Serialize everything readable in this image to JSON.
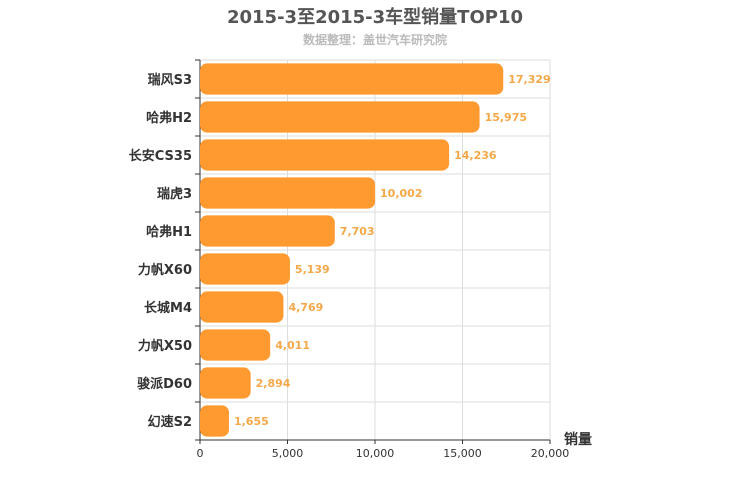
{
  "chart_data": {
    "type": "bar",
    "orientation": "horizontal",
    "title": "2015-3至2015-3车型销量TOP10",
    "subtitle": "数据整理：盖世汽车研究院",
    "xlabel": "销量",
    "ylabel": "",
    "categories": [
      "瑞风S3",
      "哈弗H2",
      "长安CS35",
      "瑞虎3",
      "哈弗H1",
      "力帆X60",
      "长城M4",
      "力帆X50",
      "骏派D60",
      "幻速S2"
    ],
    "values": [
      17329,
      15975,
      14236,
      10002,
      7703,
      5139,
      4769,
      4011,
      2894,
      1655
    ],
    "value_labels": [
      "17,329",
      "15,975",
      "14,236",
      "10,002",
      "7,703",
      "5,139",
      "4,769",
      "4,011",
      "2,894",
      "1,655"
    ],
    "xlim": [
      0,
      20000
    ],
    "ticks": [
      0,
      5000,
      10000,
      15000,
      20000
    ],
    "tick_labels": [
      "0",
      "5,000",
      "10,000",
      "15,000",
      "20,000"
    ],
    "grid": true,
    "legend": "none",
    "colors": {
      "bar": "#ff9a30",
      "value_label": "#f5a84a",
      "grid": "#dddddd",
      "axis": "#333333"
    }
  }
}
